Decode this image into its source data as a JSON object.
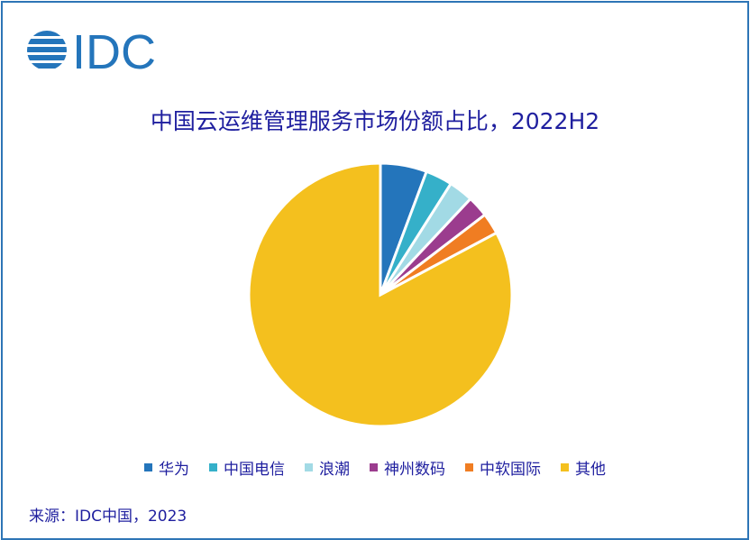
{
  "logo_text": "IDC",
  "chart_data": {
    "type": "pie",
    "title": "中国云运维管理服务市场份额占比，2022H2",
    "categories": [
      "华为",
      "中国电信",
      "浪潮",
      "神州数码",
      "中软国际",
      "其他"
    ],
    "values": [
      5.7,
      3.3,
      3.0,
      2.6,
      2.6,
      82.8
    ],
    "unit": "%",
    "colors": [
      "#2475bb",
      "#35b0c9",
      "#a2dae5",
      "#9b3c8e",
      "#f07d22",
      "#f4c01e"
    ],
    "start_angle": "12 o'clock",
    "direction": "clockwise",
    "legend_position": "bottom"
  },
  "source": "来源：IDC中国，2023"
}
